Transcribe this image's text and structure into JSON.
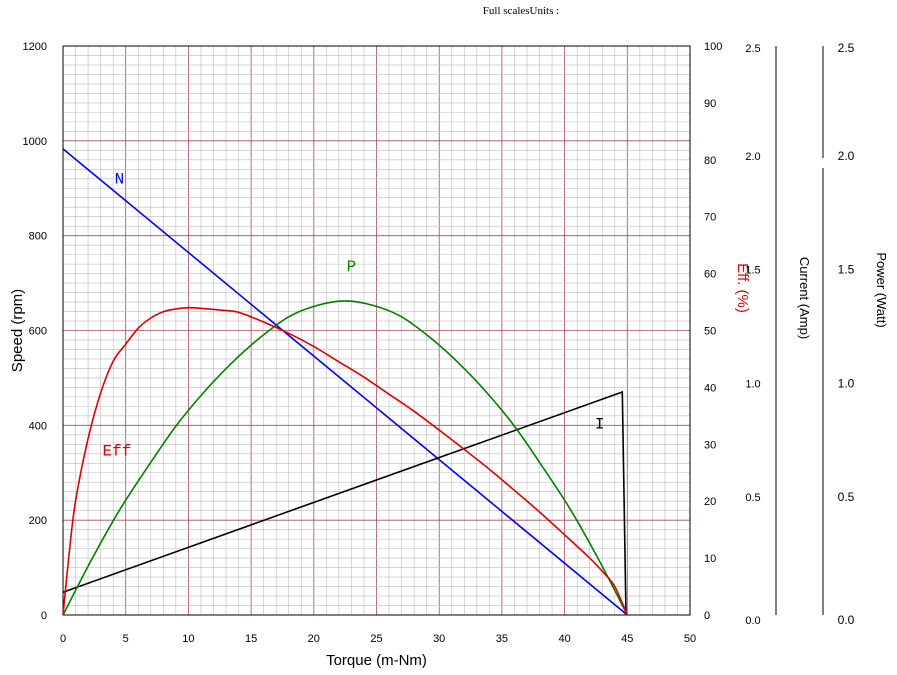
{
  "header": {
    "text": "Full scalesUnits :"
  },
  "chart_data": {
    "type": "line",
    "xlabel": "Torque (m-Nm)",
    "xlim": [
      0,
      50
    ],
    "x_ticks": [
      "0",
      "5",
      "10",
      "15",
      "20",
      "25",
      "30",
      "35",
      "40",
      "45",
      "50"
    ],
    "axes": {
      "speed": {
        "label": "Speed (rpm)",
        "range": [
          0,
          1200
        ],
        "ticks": [
          "0",
          "200",
          "400",
          "600",
          "800",
          "1000",
          "1200"
        ],
        "color": "#000000"
      },
      "efficiency": {
        "label": "Eff. (%)",
        "range": [
          0,
          100
        ],
        "ticks": [
          "0",
          "10",
          "20",
          "30",
          "40",
          "50",
          "60",
          "70",
          "80",
          "90",
          "100"
        ],
        "color": "#e00000"
      },
      "current": {
        "label": "Current (Amp)",
        "range": [
          0,
          2.5
        ],
        "ticks": [
          "0.0",
          "0.5",
          "1.0",
          "1.5",
          "2.0",
          "2.5"
        ],
        "color": "#000000"
      },
      "power": {
        "label": "Power (Watt)",
        "range": [
          0,
          2.5
        ],
        "ticks": [
          "0.0",
          "0.5",
          "1.0",
          "1.5",
          "2.0",
          "2.5"
        ],
        "color": "#000000"
      }
    },
    "grid": true,
    "series": [
      {
        "name": "N",
        "axis": "speed",
        "color": "#0000ff",
        "x": [
          0,
          45
        ],
        "y": [
          983,
          0
        ]
      },
      {
        "name": "I",
        "axis": "current",
        "color": "#000000",
        "x": [
          0,
          44.6,
          44.9
        ],
        "y": [
          0.1,
          0.98,
          0.0
        ]
      },
      {
        "name": "P",
        "axis": "power",
        "color": "#008000",
        "x": [
          0,
          2.25,
          4.5,
          6.75,
          9,
          11.25,
          13.5,
          15.75,
          18,
          20.25,
          22.5,
          24.75,
          27,
          29.25,
          31.5,
          33.75,
          36,
          38.25,
          40.5,
          42.75,
          45
        ],
        "y": [
          0,
          0.24,
          0.46,
          0.65,
          0.83,
          0.98,
          1.11,
          1.22,
          1.31,
          1.36,
          1.38,
          1.36,
          1.31,
          1.22,
          1.11,
          0.98,
          0.83,
          0.65,
          0.46,
          0.24,
          0
        ]
      },
      {
        "name": "Eff",
        "axis": "efficiency",
        "color": "#e00000",
        "x": [
          0,
          0.5,
          1,
          2,
          3,
          4,
          5,
          6,
          7,
          8,
          9,
          10,
          11,
          12,
          13,
          14,
          16,
          18,
          20,
          22,
          24,
          26,
          28,
          30,
          32,
          34,
          36,
          38,
          40,
          42,
          43,
          44,
          45
        ],
        "y": [
          0,
          11,
          20,
          31,
          39,
          44.6,
          47.6,
          50.4,
          52.2,
          53.3,
          53.8,
          54.0,
          53.9,
          53.7,
          53.5,
          53.2,
          51.5,
          49.5,
          47.2,
          44.5,
          41.8,
          38.8,
          35.8,
          32.5,
          29.1,
          25.6,
          21.9,
          18.1,
          14.1,
          10.0,
          7.7,
          5.0,
          0
        ]
      }
    ],
    "curve_labels": [
      {
        "text": "N",
        "series": "N"
      },
      {
        "text": "P",
        "series": "P"
      },
      {
        "text": "Eff",
        "series": "Eff"
      },
      {
        "text": "I",
        "series": "I"
      }
    ]
  }
}
